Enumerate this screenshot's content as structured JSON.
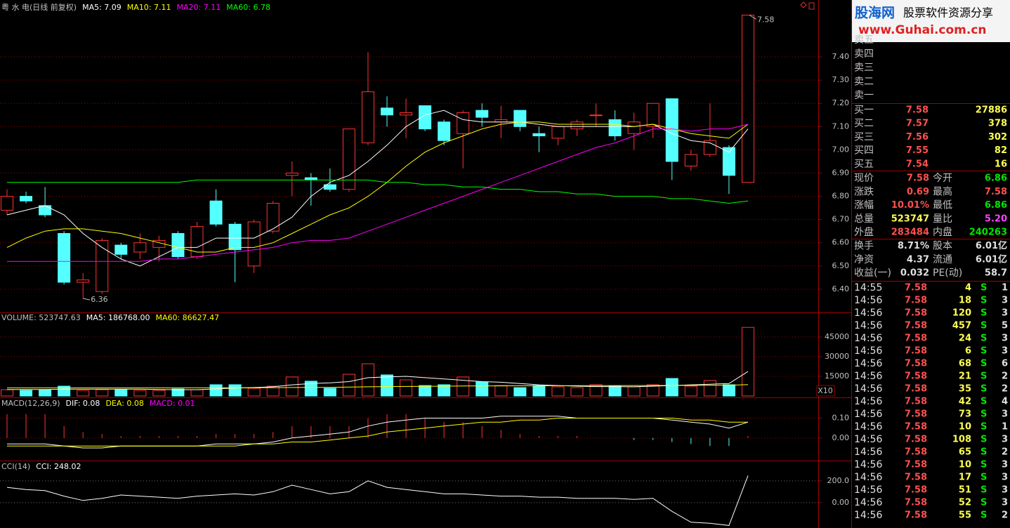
{
  "chart_data": [
    {
      "type": "candlestick",
      "title": "粤 水 电(日线 前复权)",
      "open": [
        6.74,
        6.8,
        6.76,
        6.64,
        6.43,
        6.39,
        6.59,
        6.56,
        6.58,
        6.64,
        6.54,
        6.78,
        6.68,
        6.5,
        6.65,
        6.89,
        6.88,
        6.85,
        6.83,
        7.03,
        7.18,
        7.15,
        7.19,
        7.12,
        7.07,
        7.17,
        7.12,
        7.17,
        7.07,
        7.05,
        7.09,
        7.15,
        7.13,
        7.07,
        7.1,
        7.22,
        6.93,
        6.98,
        7.01,
        6.86
      ],
      "high": [
        6.83,
        6.82,
        6.84,
        6.65,
        6.47,
        6.62,
        6.6,
        6.64,
        6.63,
        6.65,
        6.69,
        6.83,
        6.69,
        6.7,
        6.78,
        6.95,
        6.9,
        6.92,
        7.09,
        7.42,
        7.23,
        7.22,
        7.19,
        7.13,
        7.17,
        7.2,
        7.19,
        7.17,
        7.1,
        7.1,
        7.13,
        7.2,
        7.17,
        7.16,
        7.2,
        7.22,
        7.0,
        7.2,
        7.02,
        7.58
      ],
      "low": [
        6.72,
        6.77,
        6.71,
        6.42,
        6.36,
        6.38,
        6.53,
        6.53,
        6.52,
        6.53,
        6.53,
        6.67,
        6.43,
        6.47,
        6.64,
        6.8,
        6.76,
        6.82,
        6.82,
        7.02,
        7.1,
        7.05,
        7.08,
        7.02,
        6.92,
        7.1,
        7.05,
        7.08,
        6.99,
        7.02,
        7.06,
        7.1,
        7.04,
        7.0,
        7.05,
        6.87,
        6.91,
        6.97,
        6.81,
        6.86
      ],
      "close": [
        6.8,
        6.78,
        6.72,
        6.43,
        6.44,
        6.61,
        6.55,
        6.6,
        6.61,
        6.54,
        6.67,
        6.68,
        6.57,
        6.69,
        6.77,
        6.9,
        6.87,
        6.83,
        7.09,
        7.25,
        7.15,
        7.16,
        7.09,
        7.04,
        7.16,
        7.14,
        7.13,
        7.1,
        7.06,
        7.1,
        7.12,
        7.15,
        7.06,
        7.12,
        7.2,
        6.95,
        6.98,
        7.04,
        6.89,
        7.58
      ],
      "up_color": "#ff3232",
      "down_color": "#54ffff",
      "series": [
        {
          "name": "MA5: 7.09",
          "color": "#ffffff",
          "values": [
            6.72,
            6.74,
            6.76,
            6.72,
            6.64,
            6.58,
            6.53,
            6.5,
            6.54,
            6.58,
            6.58,
            6.62,
            6.62,
            6.62,
            6.66,
            6.71,
            6.8,
            6.86,
            6.89,
            6.95,
            7.02,
            7.1,
            7.15,
            7.17,
            7.13,
            7.12,
            7.12,
            7.12,
            7.11,
            7.1,
            7.1,
            7.1,
            7.1,
            7.1,
            7.11,
            7.07,
            7.04,
            7.03,
            6.99,
            7.09
          ]
        },
        {
          "name": "MA10: 7.11",
          "color": "#ffff00",
          "values": [
            6.58,
            6.62,
            6.65,
            6.66,
            6.66,
            6.65,
            6.64,
            6.62,
            6.6,
            6.58,
            6.56,
            6.56,
            6.58,
            6.58,
            6.6,
            6.64,
            6.68,
            6.72,
            6.75,
            6.8,
            6.86,
            6.93,
            6.99,
            7.03,
            7.06,
            7.09,
            7.11,
            7.12,
            7.12,
            7.11,
            7.11,
            7.11,
            7.11,
            7.1,
            7.11,
            7.09,
            7.07,
            7.06,
            7.05,
            7.11
          ]
        },
        {
          "name": "MA20: 7.11",
          "color": "#ff00ff",
          "values": [
            6.52,
            6.52,
            6.52,
            6.52,
            6.52,
            6.52,
            6.52,
            6.52,
            6.53,
            6.53,
            6.54,
            6.55,
            6.56,
            6.57,
            6.58,
            6.6,
            6.61,
            6.61,
            6.62,
            6.65,
            6.68,
            6.71,
            6.74,
            6.77,
            6.8,
            6.83,
            6.86,
            6.89,
            6.92,
            6.95,
            6.98,
            7.01,
            7.03,
            7.06,
            7.09,
            7.09,
            7.08,
            7.09,
            7.09,
            7.11
          ]
        },
        {
          "name": "MA60: 6.78",
          "color": "#00ff00",
          "values": [
            6.86,
            6.86,
            6.86,
            6.86,
            6.86,
            6.86,
            6.86,
            6.86,
            6.86,
            6.86,
            6.87,
            6.87,
            6.87,
            6.87,
            6.87,
            6.87,
            6.87,
            6.87,
            6.87,
            6.87,
            6.86,
            6.86,
            6.85,
            6.85,
            6.84,
            6.84,
            6.83,
            6.83,
            6.82,
            6.82,
            6.81,
            6.81,
            6.8,
            6.8,
            6.8,
            6.79,
            6.79,
            6.78,
            6.77,
            6.78
          ]
        }
      ],
      "annotations": [
        "7.58",
        "6.36"
      ],
      "ylim": [
        6.3,
        7.645
      ],
      "yticks": [
        {
          "value": 6.4,
          "label": "6.40"
        },
        {
          "value": 6.5,
          "label": "6.50"
        },
        {
          "value": 6.6,
          "label": "6.60"
        },
        {
          "value": 6.7,
          "label": "6.70"
        },
        {
          "value": 6.8,
          "label": "6.80"
        },
        {
          "value": 6.9,
          "label": "6.90"
        },
        {
          "value": 7.0,
          "label": "7.00"
        },
        {
          "value": 7.1,
          "label": "7.10"
        },
        {
          "value": 7.2,
          "label": "7.20"
        },
        {
          "value": 7.3,
          "label": "7.30"
        },
        {
          "value": 7.4,
          "label": "7.40"
        }
      ],
      "grid": true
    },
    {
      "type": "bar",
      "title": "VOLUME: 523747.63",
      "values": [
        4800,
        4300,
        4800,
        7500,
        4300,
        4800,
        4800,
        4300,
        4300,
        5400,
        4800,
        8600,
        8600,
        5900,
        7500,
        14500,
        11300,
        5900,
        16600,
        24600,
        16100,
        12300,
        8000,
        8600,
        14500,
        10700,
        8000,
        6400,
        8000,
        7000,
        6400,
        8600,
        7500,
        7000,
        8600,
        13400,
        7500,
        11800,
        8600,
        52375
      ],
      "up_color": "#ff3232",
      "down_color": "#54ffff",
      "series": [
        {
          "name": "MA5: 186768.00",
          "color": "#ffffff",
          "values": [
            5000,
            5000,
            5000,
            5200,
            5200,
            5200,
            5200,
            5200,
            5000,
            4800,
            4800,
            5400,
            6000,
            6500,
            7000,
            8500,
            9500,
            10000,
            11000,
            14000,
            14500,
            15000,
            14000,
            13000,
            12000,
            11000,
            10500,
            9500,
            8500,
            8000,
            7500,
            7200,
            7200,
            7000,
            7500,
            8000,
            8500,
            9000,
            9500,
            18677
          ]
        },
        {
          "name": "MA60: 86627.47",
          "color": "#ffff00",
          "values": [
            6200,
            6200,
            6200,
            6200,
            6200,
            6200,
            6200,
            6200,
            6200,
            6200,
            6300,
            6300,
            6300,
            6300,
            6400,
            6500,
            6600,
            6600,
            6800,
            7000,
            7200,
            7300,
            7400,
            7500,
            7600,
            7700,
            7700,
            7800,
            7800,
            7800,
            7900,
            7900,
            8000,
            8000,
            8000,
            8100,
            8100,
            8200,
            8200,
            8663
          ]
        }
      ],
      "unit_label": "X10",
      "ylim": [
        0,
        56800
      ],
      "yticks": [
        15000,
        30000,
        45000
      ],
      "grid": true
    },
    {
      "type": "macd",
      "title": "MACD(12,26,9)",
      "series": [
        {
          "name": "DIF: 0.08",
          "color": "#ffffff",
          "values": [
            -0.03,
            -0.03,
            -0.03,
            -0.04,
            -0.05,
            -0.05,
            -0.04,
            -0.04,
            -0.04,
            -0.04,
            -0.04,
            -0.03,
            -0.03,
            -0.03,
            -0.02,
            0.0,
            0.01,
            0.02,
            0.03,
            0.06,
            0.08,
            0.09,
            0.1,
            0.1,
            0.1,
            0.1,
            0.11,
            0.11,
            0.11,
            0.11,
            0.1,
            0.1,
            0.1,
            0.1,
            0.1,
            0.09,
            0.08,
            0.07,
            0.05,
            0.08
          ]
        },
        {
          "name": "DEA: 0.08",
          "color": "#ffff00",
          "values": [
            -0.04,
            -0.04,
            -0.04,
            -0.04,
            -0.04,
            -0.04,
            -0.04,
            -0.04,
            -0.04,
            -0.04,
            -0.04,
            -0.04,
            -0.04,
            -0.03,
            -0.03,
            -0.02,
            -0.02,
            -0.01,
            0.0,
            0.01,
            0.03,
            0.04,
            0.05,
            0.06,
            0.07,
            0.08,
            0.08,
            0.09,
            0.09,
            0.1,
            0.1,
            0.1,
            0.1,
            0.1,
            0.1,
            0.1,
            0.09,
            0.09,
            0.08,
            0.08
          ]
        },
        {
          "name": "MACD: 0.01",
          "color": "#ff00ff",
          "style": "histogram",
          "bar_colors": [
            "#ff3232",
            "#54ffff"
          ],
          "values": [
            0.12,
            0.12,
            0.12,
            0.06,
            0.03,
            0.02,
            0.01,
            0.01,
            0.01,
            0.01,
            0.01,
            0.02,
            0.02,
            0.02,
            0.03,
            0.06,
            0.06,
            0.06,
            0.06,
            0.1,
            0.12,
            0.12,
            0.1,
            0.08,
            0.08,
            0.06,
            0.04,
            0.02,
            0.01,
            0.01,
            0.01,
            0.0,
            0.0,
            -0.01,
            -0.01,
            -0.02,
            -0.03,
            -0.04,
            -0.04,
            0.01
          ]
        }
      ],
      "ylim": [
        -0.11,
        0.19
      ],
      "yticks": [
        {
          "value": 0,
          "label": "0.00"
        },
        {
          "value": 0.1,
          "label": "0.10"
        }
      ],
      "grid": true
    },
    {
      "type": "line",
      "title": "CCI(14)",
      "series": [
        {
          "name": "CCI: 248.02",
          "color": "#ffffff",
          "values": [
            140,
            120,
            110,
            60,
            20,
            40,
            70,
            60,
            50,
            40,
            60,
            70,
            80,
            70,
            100,
            160,
            120,
            80,
            100,
            200,
            140,
            120,
            100,
            80,
            80,
            70,
            60,
            60,
            50,
            50,
            40,
            40,
            40,
            30,
            40,
            -80,
            -180,
            -190,
            -210,
            248
          ]
        }
      ],
      "ylim": [
        -220,
        360
      ],
      "yticks": [
        {
          "value": 0,
          "label": "0.00"
        },
        {
          "value": 200,
          "label": "200.0"
        }
      ],
      "grid": true
    }
  ],
  "logo": {
    "name": "股海网",
    "slogan": "股票软件资源分享",
    "url": "www.Guhai.com.cn"
  },
  "quote": {
    "ask_labels": [
      "卖五",
      "卖四",
      "卖三",
      "卖二",
      "卖一"
    ],
    "bids": [
      [
        "买一",
        "7.58",
        "27886"
      ],
      [
        "买二",
        "7.57",
        "378"
      ],
      [
        "买三",
        "7.56",
        "302"
      ],
      [
        "买四",
        "7.55",
        "82"
      ],
      [
        "买五",
        "7.54",
        "16"
      ]
    ],
    "info": [
      [
        "现价",
        "7.58",
        "今开",
        "6.86"
      ],
      [
        "涨跌",
        "0.69",
        "最高",
        "7.58"
      ],
      [
        "涨幅",
        "10.01%",
        "最低",
        "6.86"
      ],
      [
        "总量",
        "523747",
        "量比",
        "5.20"
      ],
      [
        "外盘",
        "283484",
        "内盘",
        "240263"
      ],
      [
        "换手",
        "8.71%",
        "股本",
        "6.01亿"
      ],
      [
        "净资",
        "4.37",
        "流通",
        "6.01亿"
      ],
      [
        "收益(一)",
        "0.032",
        "PE(动)",
        "58.7"
      ]
    ],
    "ticks": [
      [
        "14:55",
        "7.58",
        "4",
        "S",
        "1"
      ],
      [
        "14:56",
        "7.58",
        "18",
        "S",
        "3"
      ],
      [
        "14:56",
        "7.58",
        "120",
        "S",
        "3"
      ],
      [
        "14:56",
        "7.58",
        "457",
        "S",
        "5"
      ],
      [
        "14:56",
        "7.58",
        "24",
        "S",
        "3"
      ],
      [
        "14:56",
        "7.58",
        "6",
        "S",
        "3"
      ],
      [
        "14:56",
        "7.58",
        "68",
        "S",
        "6"
      ],
      [
        "14:56",
        "7.58",
        "21",
        "S",
        "2"
      ],
      [
        "14:56",
        "7.58",
        "35",
        "S",
        "2"
      ],
      [
        "14:56",
        "7.58",
        "42",
        "S",
        "4"
      ],
      [
        "14:56",
        "7.58",
        "73",
        "S",
        "3"
      ],
      [
        "14:56",
        "7.58",
        "10",
        "S",
        "1"
      ],
      [
        "14:56",
        "7.58",
        "108",
        "S",
        "3"
      ],
      [
        "14:56",
        "7.58",
        "65",
        "S",
        "2"
      ],
      [
        "14:56",
        "7.58",
        "10",
        "S",
        "3"
      ],
      [
        "14:56",
        "7.58",
        "17",
        "S",
        "3"
      ],
      [
        "14:56",
        "7.58",
        "51",
        "S",
        "3"
      ],
      [
        "14:56",
        "7.58",
        "52",
        "S",
        "3"
      ],
      [
        "14:56",
        "7.58",
        "55",
        "S",
        "2"
      ]
    ]
  }
}
